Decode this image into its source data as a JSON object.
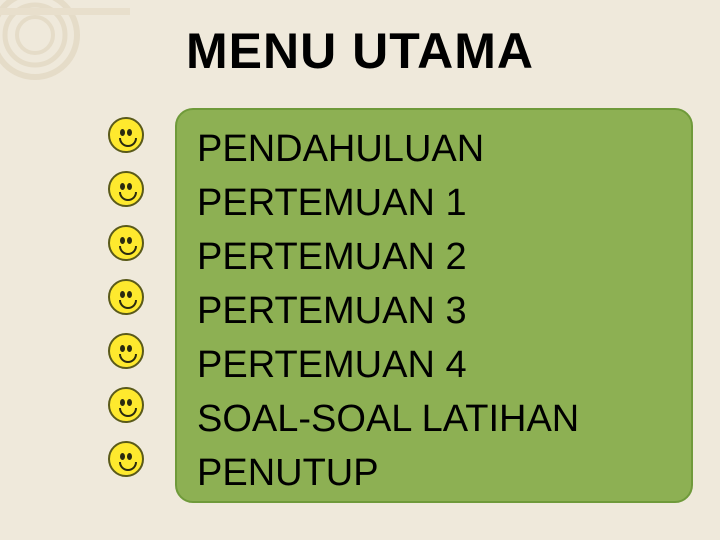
{
  "slide": {
    "background_color": "#efe9db",
    "title": "MENU  UTAMA",
    "title_color": "#000000",
    "title_fontsize": 50,
    "deco": {
      "ring_stroke": "#e5dcc8",
      "bar_fill": "#e8dfcc"
    }
  },
  "menu": {
    "box_bg": "#8db053",
    "box_border": "#6f9a3a",
    "text_color": "#000000",
    "item_fontsize": 38,
    "items": [
      "PENDAHULUAN",
      "PERTEMUAN  1",
      "PERTEMUAN  2",
      "PERTEMUAN  3",
      "PERTEMUAN  4",
      "SOAL-SOAL LATIHAN",
      "PENUTUP"
    ]
  },
  "bullets": {
    "count": 7,
    "face_bg": "#fee92e",
    "face_border": "#5a5a1a",
    "feature_color": "#2a2a10"
  }
}
